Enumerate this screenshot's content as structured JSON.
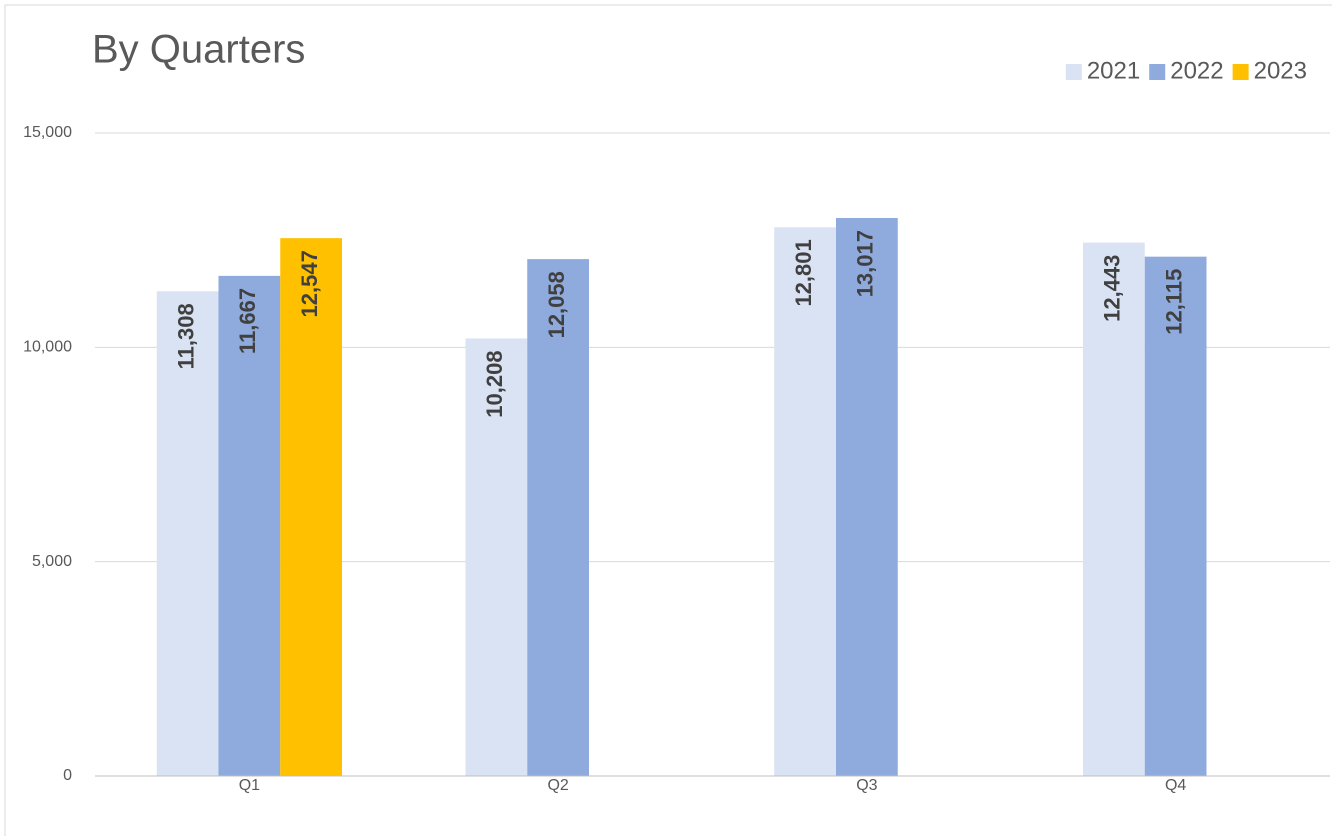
{
  "chart_data": {
    "type": "bar",
    "title": "By Quarters",
    "categories": [
      "Q1",
      "Q2",
      "Q3",
      "Q4"
    ],
    "series": [
      {
        "name": "2021",
        "color": "#dae3f3",
        "values": [
          11308,
          10208,
          12801,
          12443
        ],
        "value_labels": [
          "11,308",
          "10,208",
          "12,801",
          "12,443"
        ]
      },
      {
        "name": "2022",
        "color": "#8faadc",
        "values": [
          11667,
          12058,
          13017,
          12115
        ],
        "value_labels": [
          "11,667",
          "12,058",
          "13,017",
          "12,115"
        ]
      },
      {
        "name": "2023",
        "color": "#ffc000",
        "values": [
          12547,
          null,
          null,
          null
        ],
        "value_labels": [
          "12,547",
          null,
          null,
          null
        ]
      }
    ],
    "ylim": [
      0,
      15000
    ],
    "yticks": [
      0,
      {
        "value": 5000,
        "label": "5,000"
      },
      {
        "value": 10000,
        "label": "10,000"
      },
      {
        "value": 15000,
        "label": "15,000"
      }
    ],
    "grid": true,
    "legend": "top-right"
  }
}
